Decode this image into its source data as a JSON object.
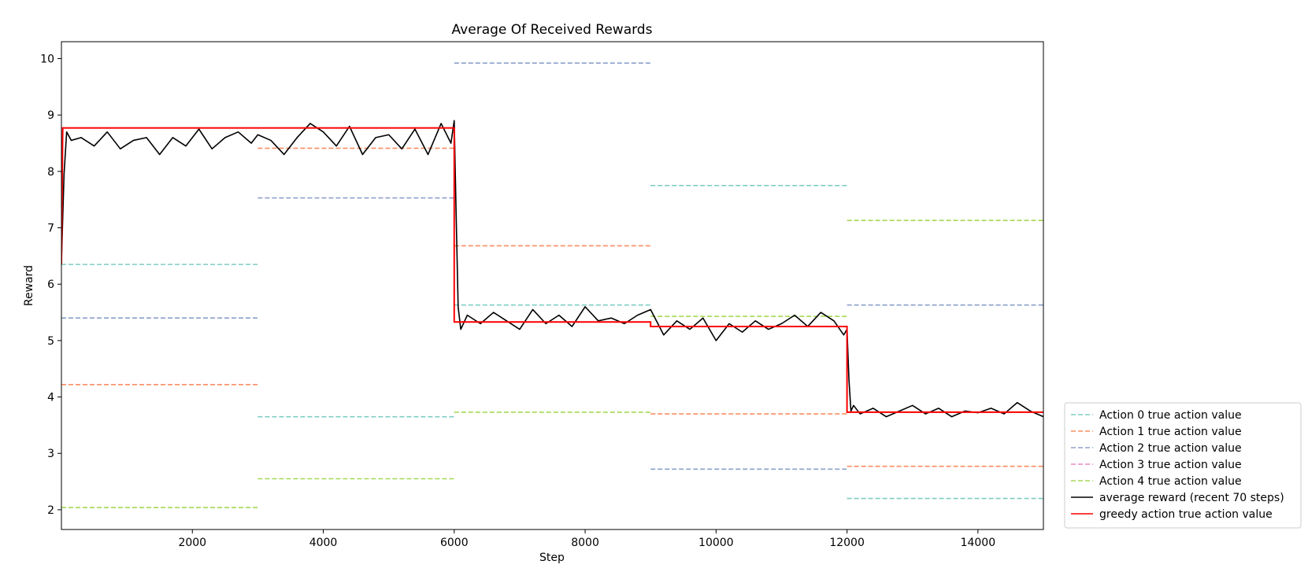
{
  "chart_data": {
    "type": "line",
    "title": "Average Of Received Rewards",
    "xlabel": "Step",
    "ylabel": "Reward",
    "xlim": [
      0,
      15000
    ],
    "ylim": [
      1.65,
      10.3
    ],
    "x_ticks": [
      2000,
      4000,
      6000,
      8000,
      10000,
      12000,
      14000
    ],
    "y_ticks": [
      2,
      3,
      4,
      5,
      6,
      7,
      8,
      9,
      10
    ],
    "grid": false,
    "legend_position": "lower-right-outside",
    "colors": {
      "action0": "#7fcdc4",
      "action1": "#fc8d62",
      "action2": "#8da0cb",
      "action3": "#e78ac3",
      "action4": "#a6d854",
      "average": "#000000",
      "greedy": "#ff0000"
    },
    "segments_x": [
      [
        0,
        3000
      ],
      [
        3000,
        6000
      ],
      [
        6000,
        9000
      ],
      [
        9000,
        12000
      ],
      [
        12000,
        15000
      ]
    ],
    "action_values": [
      {
        "name": "Action 0 true action value",
        "color": "#7fcdc4",
        "values": [
          6.35,
          3.65,
          5.63,
          7.75,
          2.2
        ]
      },
      {
        "name": "Action 1 true action value",
        "color": "#fc8d62",
        "values": [
          4.22,
          8.41,
          6.68,
          3.7,
          2.77
        ]
      },
      {
        "name": "Action 2 true action value",
        "color": "#8da0cb",
        "values": [
          5.4,
          7.53,
          9.92,
          2.72,
          5.63
        ]
      },
      {
        "name": "Action 3 true action value",
        "color": "#e78ac3",
        "values": [
          8.77,
          8.77,
          5.33,
          5.25,
          3.73
        ]
      },
      {
        "name": "Action 4 true action value",
        "color": "#a6d854",
        "values": [
          2.04,
          2.55,
          3.73,
          5.43,
          7.13
        ]
      }
    ],
    "average_reward": {
      "name": "average reward (recent 70 steps)",
      "color": "#000000",
      "x": [
        0,
        40,
        80,
        150,
        300,
        500,
        700,
        900,
        1100,
        1300,
        1500,
        1700,
        1900,
        2100,
        2300,
        2500,
        2700,
        2900,
        3000,
        3200,
        3400,
        3600,
        3800,
        4000,
        4200,
        4400,
        4600,
        4800,
        5000,
        5200,
        5400,
        5600,
        5800,
        5950,
        6000,
        6030,
        6060,
        6100,
        6200,
        6400,
        6600,
        6800,
        7000,
        7200,
        7400,
        7600,
        7800,
        8000,
        8200,
        8400,
        8600,
        8800,
        9000,
        9200,
        9400,
        9600,
        9800,
        10000,
        10200,
        10400,
        10600,
        10800,
        11000,
        11200,
        11400,
        11600,
        11800,
        11950,
        12000,
        12030,
        12060,
        12100,
        12200,
        12400,
        12600,
        12800,
        13000,
        13200,
        13400,
        13600,
        13800,
        14000,
        14200,
        14400,
        14600,
        14800,
        15000
      ],
      "y": [
        6.4,
        7.95,
        8.7,
        8.55,
        8.6,
        8.45,
        8.7,
        8.4,
        8.55,
        8.6,
        8.3,
        8.6,
        8.45,
        8.75,
        8.4,
        8.6,
        8.7,
        8.5,
        8.65,
        8.55,
        8.3,
        8.6,
        8.85,
        8.7,
        8.45,
        8.8,
        8.3,
        8.6,
        8.65,
        8.4,
        8.75,
        8.3,
        8.85,
        8.5,
        8.9,
        7.2,
        5.6,
        5.2,
        5.45,
        5.3,
        5.5,
        5.35,
        5.2,
        5.55,
        5.3,
        5.45,
        5.25,
        5.6,
        5.35,
        5.4,
        5.3,
        5.45,
        5.55,
        5.1,
        5.35,
        5.2,
        5.4,
        5.0,
        5.3,
        5.15,
        5.35,
        5.2,
        5.3,
        5.45,
        5.25,
        5.5,
        5.35,
        5.1,
        5.2,
        4.3,
        3.75,
        3.85,
        3.7,
        3.8,
        3.65,
        3.75,
        3.85,
        3.7,
        3.8,
        3.65,
        3.75,
        3.72,
        3.8,
        3.7,
        3.9,
        3.75,
        3.65
      ]
    },
    "greedy_value": {
      "name": "greedy action true action value",
      "color": "#ff0000",
      "x": [
        0,
        20,
        6000,
        6000,
        9000,
        9000,
        12000,
        12000,
        15000
      ],
      "y": [
        6.35,
        8.77,
        8.77,
        5.33,
        5.33,
        5.25,
        5.25,
        3.73,
        3.73
      ]
    },
    "legend": [
      {
        "label": "Action 0 true action value",
        "color": "#7fcdc4",
        "style": "dashed"
      },
      {
        "label": "Action 1 true action value",
        "color": "#fc8d62",
        "style": "dashed"
      },
      {
        "label": "Action 2 true action value",
        "color": "#8da0cb",
        "style": "dashed"
      },
      {
        "label": "Action 3 true action value",
        "color": "#e78ac3",
        "style": "dashed"
      },
      {
        "label": "Action 4 true action value",
        "color": "#a6d854",
        "style": "dashed"
      },
      {
        "label": "average reward (recent 70 steps)",
        "color": "#000000",
        "style": "solid"
      },
      {
        "label": "greedy action true action value",
        "color": "#ff0000",
        "style": "solid"
      }
    ]
  }
}
